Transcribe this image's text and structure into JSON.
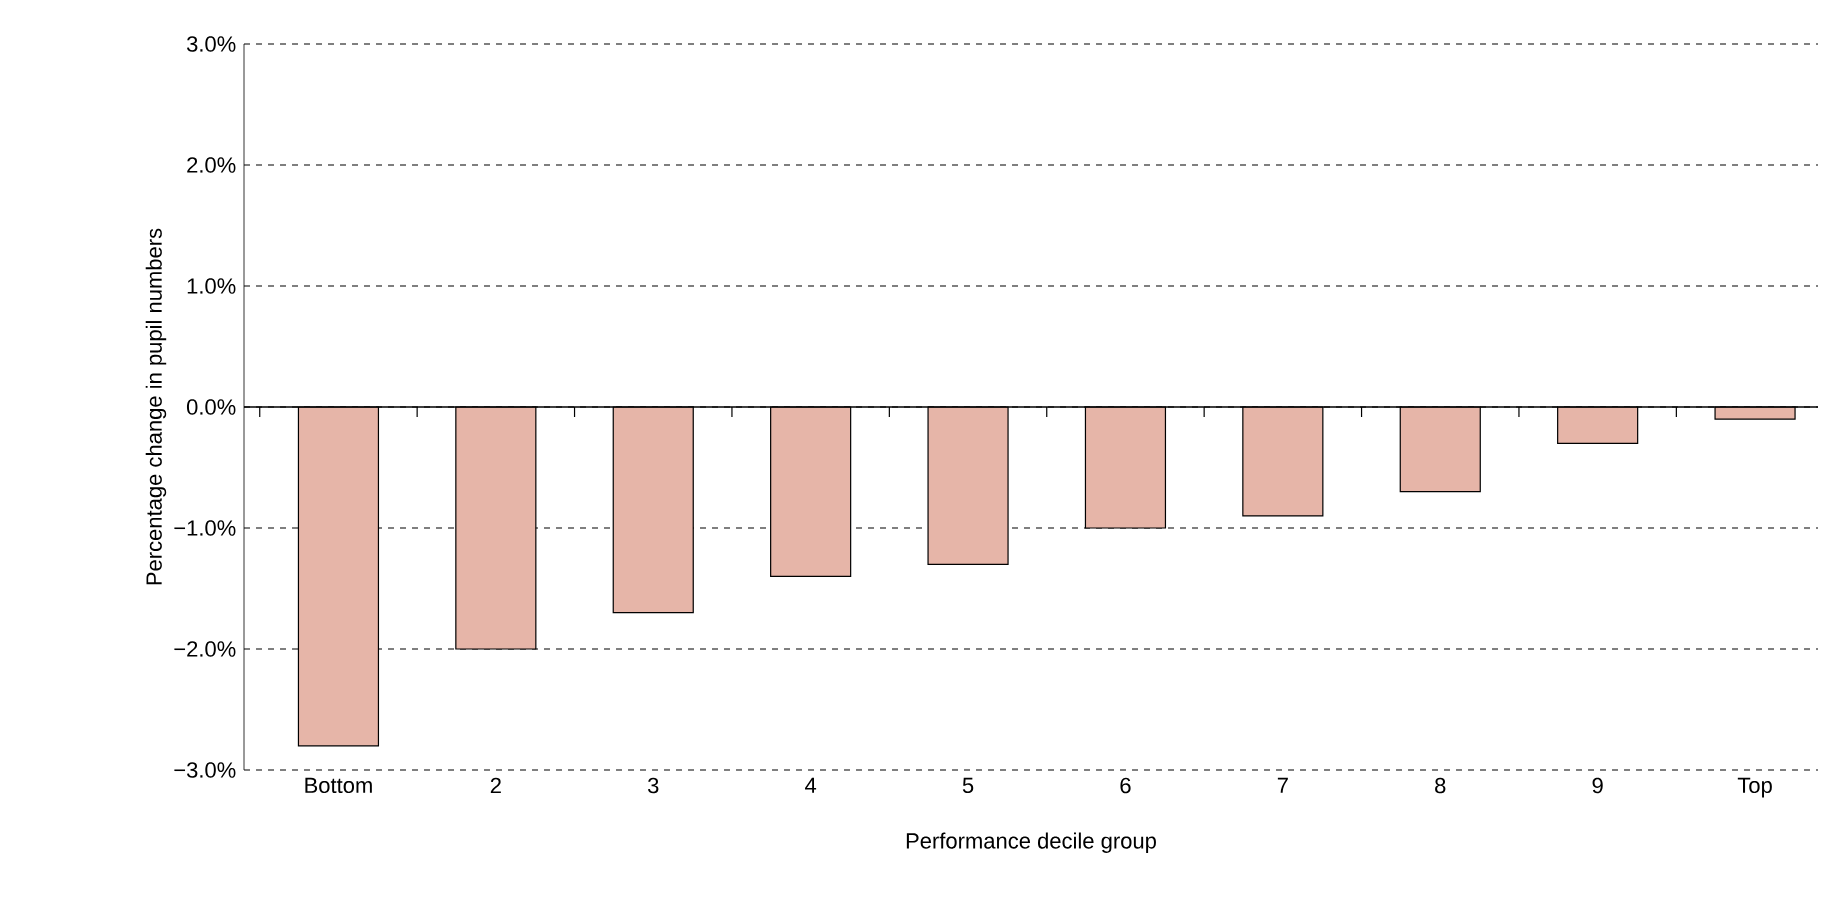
{
  "chart_data": {
    "type": "bar",
    "xlabel": "Performance decile group",
    "ylabel": "Percentage change in pupil numbers",
    "categories": [
      "Bottom",
      "2",
      "3",
      "4",
      "5",
      "6",
      "7",
      "8",
      "9",
      "Top"
    ],
    "values": [
      -2.8,
      -2.0,
      -1.7,
      -1.4,
      -1.3,
      -1.0,
      -0.9,
      -0.7,
      -0.3,
      -0.1
    ],
    "color": "#e6b5a8",
    "ylim": [
      -3,
      3
    ],
    "yticks": [
      {
        "value": -3,
        "label": "−3.0%"
      },
      {
        "value": -2,
        "label": "−2.0%"
      },
      {
        "value": -1,
        "label": "−1.0%"
      },
      {
        "value": 0,
        "label": "0.0%"
      },
      {
        "value": 1,
        "label": "1.0%"
      },
      {
        "value": 2,
        "label": "2.0%"
      },
      {
        "value": 3,
        "label": "3.0%"
      }
    ],
    "grid": "y"
  }
}
